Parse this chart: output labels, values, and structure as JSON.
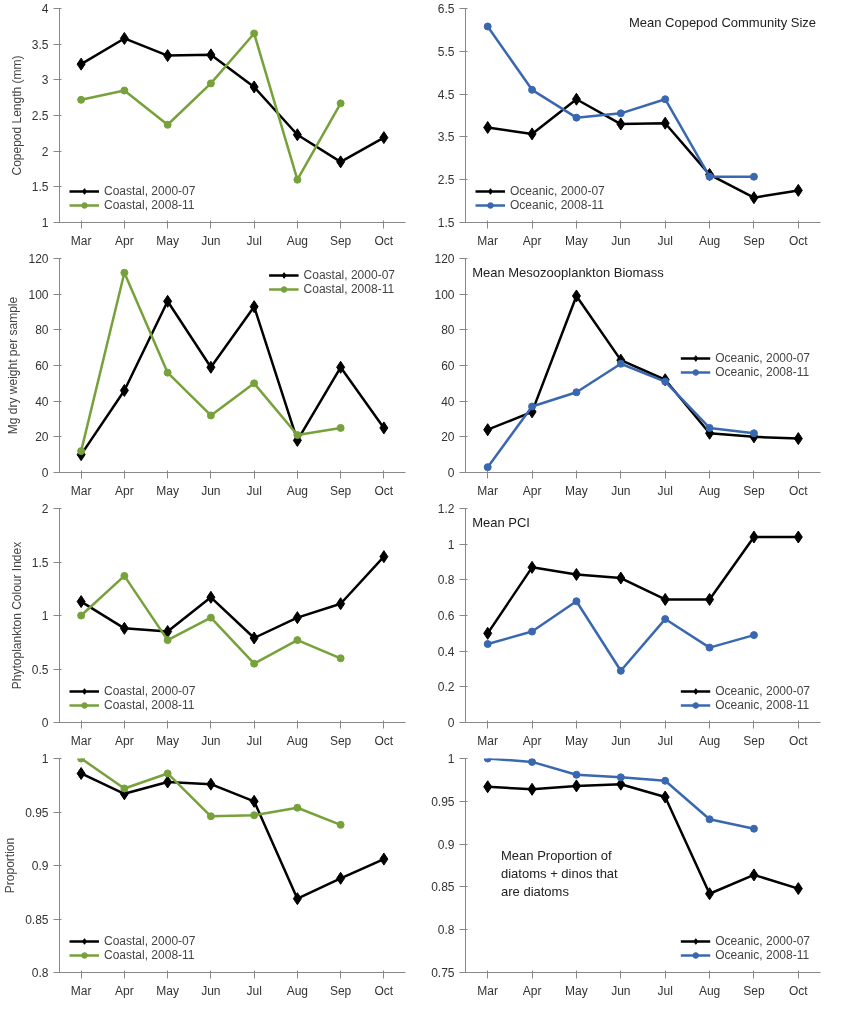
{
  "chart_data": [
    {
      "type": "line",
      "ylabel": "Copepod Length (mm)",
      "categories": [
        "Mar",
        "Apr",
        "May",
        "Jun",
        "Jul",
        "Aug",
        "Sep",
        "Oct"
      ],
      "ylim": [
        1,
        4
      ],
      "yticks": [
        1,
        1.5,
        2,
        2.5,
        3,
        3.5,
        4
      ],
      "grid": false,
      "legend": "bottom left",
      "series": [
        {
          "name": "Coastal, 2000-07",
          "color": "#000000",
          "marker": "diamond",
          "values": [
            3.22,
            3.58,
            3.34,
            3.35,
            2.9,
            2.23,
            1.85,
            2.19
          ]
        },
        {
          "name": "Coastal, 2008-11",
          "color": "#77a13a",
          "marker": "circle",
          "values": [
            2.72,
            2.85,
            2.37,
            2.95,
            3.65,
            1.6,
            2.67,
            null
          ]
        }
      ]
    },
    {
      "type": "line",
      "title": "Mean Copepod Community Size",
      "categories": [
        "Mar",
        "Apr",
        "May",
        "Jun",
        "Jul",
        "Aug",
        "Sep",
        "Oct"
      ],
      "ylim": [
        1.5,
        6.5
      ],
      "yticks": [
        1.5,
        2.5,
        3.5,
        4.5,
        5.5,
        6.5
      ],
      "grid": false,
      "legend": "bottom left",
      "series": [
        {
          "name": "Oceanic, 2000-07",
          "color": "#000000",
          "marker": "diamond",
          "values": [
            3.72,
            3.57,
            4.38,
            3.8,
            3.82,
            2.62,
            2.08,
            2.25
          ]
        },
        {
          "name": "Oceanic, 2008-11",
          "color": "#3a68b0",
          "marker": "circle",
          "values": [
            6.08,
            4.6,
            3.95,
            4.05,
            4.38,
            2.57,
            2.57,
            null
          ]
        }
      ]
    },
    {
      "type": "line",
      "ylabel": "Mg dry weight per sample",
      "categories": [
        "Mar",
        "Apr",
        "May",
        "Jun",
        "Jul",
        "Aug",
        "Sep",
        "Oct"
      ],
      "ylim": [
        0,
        120
      ],
      "yticks": [
        0,
        20,
        40,
        60,
        80,
        100,
        120
      ],
      "grid": false,
      "legend": "top right",
      "series": [
        {
          "name": "Coastal, 2000-07",
          "color": "#000000",
          "marker": "diamond",
          "values": [
            10,
            46,
            96,
            59,
            93,
            18,
            59,
            25
          ]
        },
        {
          "name": "Coastal, 2008-11",
          "color": "#77a13a",
          "marker": "circle",
          "values": [
            12,
            112,
            56,
            32,
            50,
            21,
            25,
            null
          ]
        }
      ]
    },
    {
      "type": "line",
      "title": "Mean Mesozooplankton Biomass",
      "categories": [
        "Mar",
        "Apr",
        "May",
        "Jun",
        "Jul",
        "Aug",
        "Sep",
        "Oct"
      ],
      "ylim": [
        0,
        120
      ],
      "yticks": [
        0,
        20,
        40,
        60,
        80,
        100,
        120
      ],
      "grid": false,
      "legend": "right",
      "series": [
        {
          "name": "Oceanic, 2000-07",
          "color": "#000000",
          "marker": "diamond",
          "values": [
            24,
            34,
            99,
            63,
            52,
            22,
            20,
            19
          ]
        },
        {
          "name": "Oceanic, 2008-11",
          "color": "#3a68b0",
          "marker": "circle",
          "values": [
            3,
            37,
            45,
            61,
            51,
            25,
            22,
            null
          ]
        }
      ]
    },
    {
      "type": "line",
      "ylabel": "Phytoplankton Colour Index",
      "categories": [
        "Mar",
        "Apr",
        "May",
        "Jun",
        "Jul",
        "Aug",
        "Sep",
        "Oct"
      ],
      "ylim": [
        0,
        2
      ],
      "yticks": [
        0,
        0.5,
        1,
        1.5,
        2
      ],
      "grid": false,
      "legend": "bottom left",
      "series": [
        {
          "name": "Coastal, 2000-07",
          "color": "#000000",
          "marker": "diamond",
          "values": [
            1.13,
            0.88,
            0.85,
            1.17,
            0.79,
            0.98,
            1.11,
            1.55
          ]
        },
        {
          "name": "Coastal, 2008-11",
          "color": "#77a13a",
          "marker": "circle",
          "values": [
            1.0,
            1.37,
            0.77,
            0.98,
            0.55,
            0.77,
            0.6,
            null
          ]
        }
      ]
    },
    {
      "type": "line",
      "title": "Mean PCI",
      "categories": [
        "Mar",
        "Apr",
        "May",
        "Jun",
        "Jul",
        "Aug",
        "Sep",
        "Oct"
      ],
      "ylim": [
        0,
        1.2
      ],
      "yticks": [
        0,
        0.2,
        0.4,
        0.6,
        0.8,
        1,
        1.2
      ],
      "grid": false,
      "legend": "bottom right",
      "series": [
        {
          "name": "Oceanic, 2000-07",
          "color": "#000000",
          "marker": "diamond",
          "values": [
            0.5,
            0.87,
            0.83,
            0.81,
            0.69,
            0.69,
            1.04,
            1.04
          ]
        },
        {
          "name": "Oceanic, 2008-11",
          "color": "#3a68b0",
          "marker": "circle",
          "values": [
            0.44,
            0.51,
            0.68,
            0.29,
            0.58,
            0.42,
            0.49,
            null
          ]
        }
      ]
    },
    {
      "type": "line",
      "ylabel": "Proportion",
      "categories": [
        "Mar",
        "Apr",
        "May",
        "Jun",
        "Jul",
        "Aug",
        "Sep",
        "Oct"
      ],
      "ylim": [
        0.8,
        1
      ],
      "yticks": [
        0.8,
        0.85,
        0.9,
        0.95,
        1
      ],
      "grid": false,
      "legend": "bottom left",
      "series": [
        {
          "name": "Coastal, 2000-07",
          "color": "#000000",
          "marker": "diamond",
          "values": [
            0.986,
            0.967,
            0.978,
            0.976,
            0.96,
            0.869,
            0.888,
            0.906
          ]
        },
        {
          "name": "Coastal, 2008-11",
          "color": "#77a13a",
          "marker": "circle",
          "values": [
            1.0,
            0.972,
            0.986,
            0.946,
            0.947,
            0.954,
            0.938,
            null
          ]
        }
      ]
    },
    {
      "type": "line",
      "title": "Mean Proportion of\ndiatoms + dinos that\nare diatoms",
      "categories": [
        "Mar",
        "Apr",
        "May",
        "Jun",
        "Jul",
        "Aug",
        "Sep",
        "Oct"
      ],
      "ylim": [
        0.75,
        1
      ],
      "yticks": [
        0.75,
        0.8,
        0.85,
        0.9,
        0.95,
        1
      ],
      "grid": false,
      "legend": "bottom right",
      "series": [
        {
          "name": "Oceanic, 2000-07",
          "color": "#000000",
          "marker": "diamond",
          "values": [
            0.967,
            0.964,
            0.968,
            0.97,
            0.955,
            0.842,
            0.864,
            0.848
          ]
        },
        {
          "name": "Oceanic, 2008-11",
          "color": "#3a68b0",
          "marker": "circle",
          "values": [
            1.0,
            0.996,
            0.981,
            0.978,
            0.974,
            0.929,
            0.918,
            null
          ]
        }
      ]
    }
  ]
}
